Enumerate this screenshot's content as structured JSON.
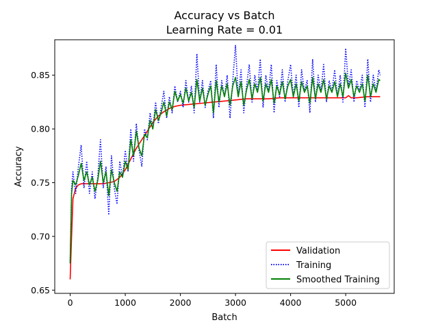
{
  "chart_data": {
    "type": "line",
    "title": "Accuracy vs Batch",
    "subtitle": "Learning Rate = 0.01",
    "xlabel": "Batch",
    "ylabel": "Accuracy",
    "xlim": [
      -280,
      5880
    ],
    "ylim": [
      0.647,
      0.883
    ],
    "xticks": [
      0,
      1000,
      2000,
      3000,
      4000,
      5000
    ],
    "yticks": [
      0.65,
      0.7,
      0.75,
      0.8,
      0.85
    ],
    "xtick_labels": [
      "0",
      "1000",
      "2000",
      "3000",
      "4000",
      "5000"
    ],
    "ytick_labels": [
      "0.65",
      "0.70",
      "0.75",
      "0.80",
      "0.85"
    ],
    "grid": false,
    "legend_position": "bottom-right",
    "series": [
      {
        "name": "Validation",
        "color": "#ff0000",
        "style": "solid",
        "x": [
          0,
          25,
          50,
          100,
          150,
          200,
          300,
          400,
          500,
          600,
          700,
          800,
          900,
          1000,
          1100,
          1200,
          1300,
          1400,
          1500,
          1600,
          1700,
          1800,
          1900,
          2000,
          2200,
          2400,
          2600,
          2800,
          3000,
          3200,
          3400,
          3600,
          3800,
          4000,
          4200,
          4400,
          4600,
          4800,
          5000,
          5050,
          5100,
          5200,
          5400,
          5625
        ],
        "y": [
          0.66,
          0.7,
          0.735,
          0.745,
          0.748,
          0.749,
          0.749,
          0.749,
          0.749,
          0.749,
          0.75,
          0.751,
          0.755,
          0.762,
          0.772,
          0.782,
          0.79,
          0.798,
          0.806,
          0.812,
          0.816,
          0.819,
          0.821,
          0.822,
          0.823,
          0.824,
          0.825,
          0.826,
          0.827,
          0.828,
          0.828,
          0.828,
          0.829,
          0.829,
          0.829,
          0.829,
          0.829,
          0.829,
          0.829,
          0.831,
          0.829,
          0.829,
          0.83,
          0.83
        ]
      },
      {
        "name": "Training",
        "color": "#0000ff",
        "style": "dotted",
        "x": [
          0,
          25,
          50,
          100,
          150,
          200,
          250,
          300,
          350,
          400,
          450,
          500,
          550,
          600,
          650,
          700,
          750,
          800,
          850,
          900,
          950,
          1000,
          1050,
          1100,
          1150,
          1200,
          1250,
          1300,
          1350,
          1400,
          1450,
          1500,
          1550,
          1600,
          1650,
          1700,
          1750,
          1800,
          1850,
          1900,
          1950,
          2000,
          2050,
          2100,
          2150,
          2200,
          2250,
          2300,
          2350,
          2400,
          2450,
          2500,
          2550,
          2600,
          2650,
          2700,
          2750,
          2800,
          2850,
          2900,
          2950,
          3000,
          3050,
          3100,
          3150,
          3200,
          3250,
          3300,
          3350,
          3400,
          3450,
          3500,
          3550,
          3600,
          3650,
          3700,
          3750,
          3800,
          3850,
          3900,
          3950,
          4000,
          4050,
          4100,
          4150,
          4200,
          4250,
          4300,
          4350,
          4400,
          4450,
          4500,
          4550,
          4600,
          4650,
          4700,
          4750,
          4800,
          4850,
          4900,
          4950,
          5000,
          5050,
          5100,
          5150,
          5200,
          5250,
          5300,
          5350,
          5400,
          5450,
          5500,
          5550,
          5600,
          5625
        ],
        "y": [
          0.675,
          0.745,
          0.76,
          0.74,
          0.765,
          0.785,
          0.745,
          0.77,
          0.74,
          0.76,
          0.735,
          0.755,
          0.79,
          0.745,
          0.765,
          0.72,
          0.775,
          0.745,
          0.73,
          0.77,
          0.755,
          0.78,
          0.76,
          0.8,
          0.77,
          0.805,
          0.78,
          0.765,
          0.8,
          0.79,
          0.815,
          0.8,
          0.825,
          0.805,
          0.82,
          0.835,
          0.81,
          0.83,
          0.815,
          0.84,
          0.825,
          0.835,
          0.82,
          0.845,
          0.825,
          0.84,
          0.815,
          0.87,
          0.825,
          0.845,
          0.82,
          0.835,
          0.845,
          0.81,
          0.86,
          0.82,
          0.845,
          0.83,
          0.85,
          0.81,
          0.845,
          0.878,
          0.83,
          0.855,
          0.815,
          0.84,
          0.86,
          0.825,
          0.85,
          0.835,
          0.865,
          0.82,
          0.85,
          0.835,
          0.86,
          0.815,
          0.845,
          0.83,
          0.855,
          0.825,
          0.845,
          0.86,
          0.83,
          0.85,
          0.82,
          0.855,
          0.835,
          0.845,
          0.815,
          0.865,
          0.825,
          0.85,
          0.835,
          0.86,
          0.825,
          0.845,
          0.835,
          0.855,
          0.83,
          0.85,
          0.825,
          0.875,
          0.84,
          0.855,
          0.825,
          0.845,
          0.835,
          0.85,
          0.82,
          0.865,
          0.825,
          0.85,
          0.835,
          0.855,
          0.85
        ]
      },
      {
        "name": "Smoothed Training",
        "color": "#008000",
        "style": "solid",
        "x": [
          0,
          25,
          50,
          100,
          150,
          200,
          250,
          300,
          350,
          400,
          450,
          500,
          550,
          600,
          650,
          700,
          750,
          800,
          850,
          900,
          950,
          1000,
          1050,
          1100,
          1150,
          1200,
          1250,
          1300,
          1350,
          1400,
          1450,
          1500,
          1550,
          1600,
          1650,
          1700,
          1750,
          1800,
          1850,
          1900,
          1950,
          2000,
          2050,
          2100,
          2150,
          2200,
          2250,
          2300,
          2350,
          2400,
          2450,
          2500,
          2550,
          2600,
          2650,
          2700,
          2750,
          2800,
          2850,
          2900,
          2950,
          3000,
          3050,
          3100,
          3150,
          3200,
          3250,
          3300,
          3350,
          3400,
          3450,
          3500,
          3550,
          3600,
          3650,
          3700,
          3750,
          3800,
          3850,
          3900,
          3950,
          4000,
          4050,
          4100,
          4150,
          4200,
          4250,
          4300,
          4350,
          4400,
          4450,
          4500,
          4550,
          4600,
          4650,
          4700,
          4750,
          4800,
          4850,
          4900,
          4950,
          5000,
          5050,
          5100,
          5150,
          5200,
          5250,
          5300,
          5350,
          5400,
          5450,
          5500,
          5550,
          5600,
          5625
        ],
        "y": [
          0.675,
          0.74,
          0.752,
          0.748,
          0.757,
          0.768,
          0.752,
          0.76,
          0.748,
          0.755,
          0.742,
          0.752,
          0.77,
          0.75,
          0.76,
          0.738,
          0.762,
          0.75,
          0.742,
          0.76,
          0.755,
          0.77,
          0.762,
          0.79,
          0.775,
          0.798,
          0.782,
          0.775,
          0.795,
          0.792,
          0.808,
          0.8,
          0.818,
          0.808,
          0.815,
          0.825,
          0.812,
          0.825,
          0.818,
          0.835,
          0.826,
          0.832,
          0.824,
          0.838,
          0.826,
          0.834,
          0.82,
          0.846,
          0.826,
          0.838,
          0.822,
          0.832,
          0.84,
          0.815,
          0.845,
          0.825,
          0.84,
          0.83,
          0.842,
          0.822,
          0.84,
          0.848,
          0.83,
          0.844,
          0.822,
          0.836,
          0.846,
          0.828,
          0.842,
          0.834,
          0.848,
          0.826,
          0.842,
          0.834,
          0.846,
          0.824,
          0.84,
          0.832,
          0.844,
          0.828,
          0.84,
          0.846,
          0.83,
          0.842,
          0.826,
          0.844,
          0.834,
          0.84,
          0.824,
          0.848,
          0.828,
          0.842,
          0.834,
          0.846,
          0.828,
          0.84,
          0.834,
          0.844,
          0.83,
          0.842,
          0.83,
          0.852,
          0.838,
          0.846,
          0.83,
          0.84,
          0.834,
          0.842,
          0.826,
          0.85,
          0.83,
          0.842,
          0.834,
          0.846,
          0.845
        ]
      }
    ]
  }
}
